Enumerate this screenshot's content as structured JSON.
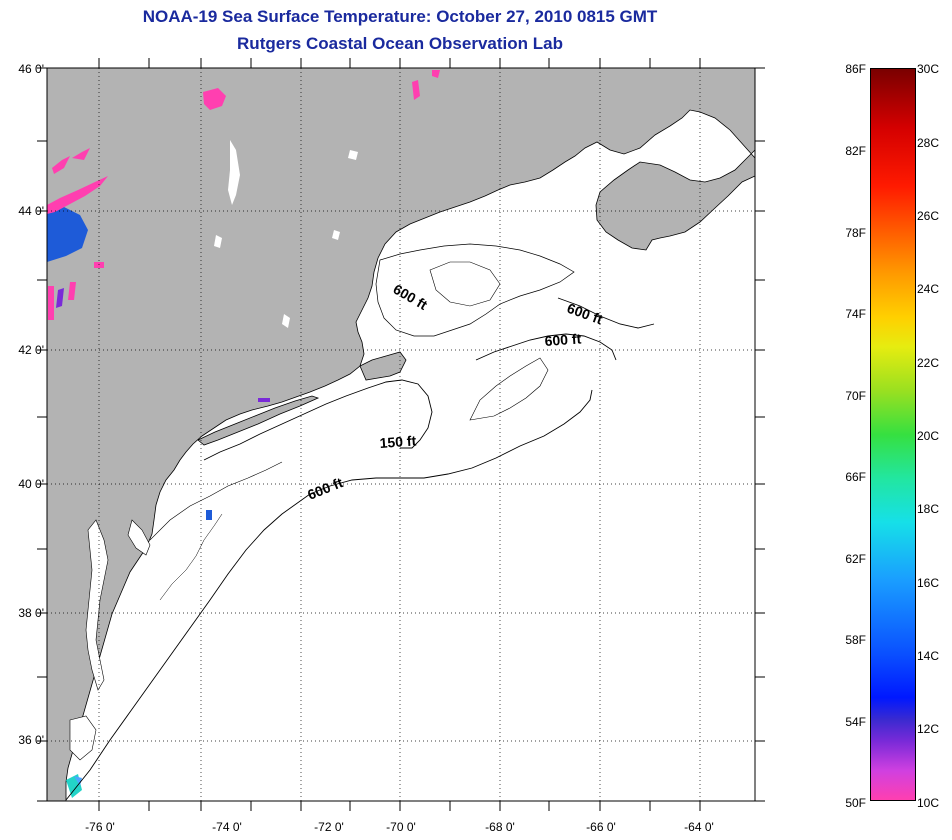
{
  "title_line1": "NOAA-19 Sea Surface Temperature:  October 27, 2010 0815 GMT",
  "title_line2": "Rutgers Coastal Ocean Observation Lab",
  "lat_labels": [
    "46 0'",
    "44 0'",
    "42 0'",
    "40 0'",
    "38 0'",
    "36 0'"
  ],
  "lon_labels": [
    "-76 0'",
    "-74 0'",
    "-72 0'",
    "-70 0'",
    "-68 0'",
    "-66 0'",
    "-64 0'"
  ],
  "contour_labels": [
    "600 ft",
    "600 ft",
    "600 ft",
    "150 ft",
    "600 ft"
  ],
  "colorbar": {
    "f_labels": [
      "86F",
      "82F",
      "78F",
      "74F",
      "70F",
      "66F",
      "62F",
      "58F",
      "54F",
      "50F"
    ],
    "c_labels": [
      "30C",
      "28C",
      "26C",
      "24C",
      "22C",
      "20C",
      "18C",
      "16C",
      "14C",
      "12C",
      "10C"
    ]
  },
  "colors": {
    "land": "#b3b3b3",
    "title": "#1a2a9e"
  }
}
